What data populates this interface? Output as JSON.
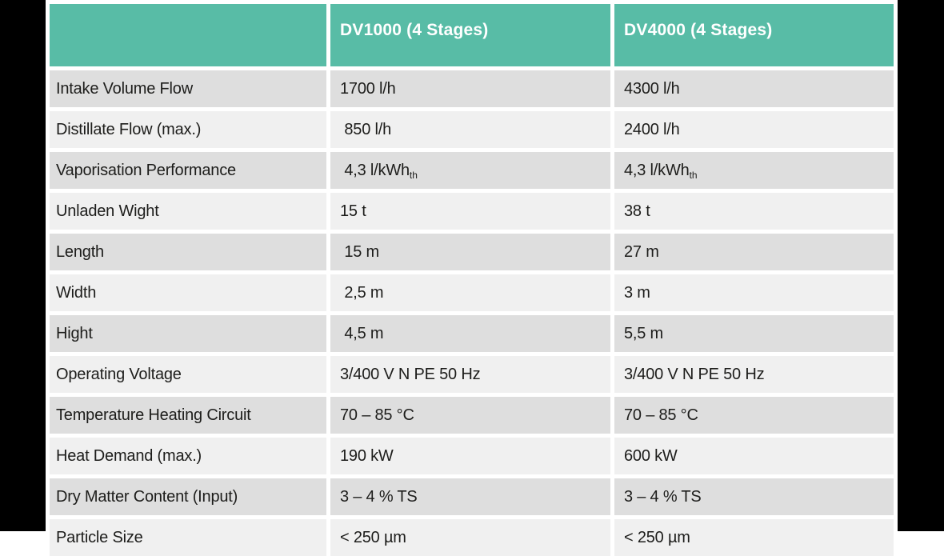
{
  "colors": {
    "header_bg": "#58bca6",
    "header_text": "#ffffff",
    "row_dark": "#dedede",
    "row_light": "#f0f0f0",
    "body_text": "#1d1d1b",
    "frame": "#000000"
  },
  "table": {
    "columns": [
      {
        "label": ""
      },
      {
        "label": "DV1000 (4 Stages)"
      },
      {
        "label": "DV4000 (4 Stages)"
      }
    ],
    "rows": [
      {
        "label": "Intake Volume Flow",
        "dv1000": {
          "text": "1700 l/h"
        },
        "dv4000": {
          "text": "4300 l/h"
        }
      },
      {
        "label": "Distillate Flow (max.)",
        "dv1000": {
          "text": " 850 l/h"
        },
        "dv4000": {
          "text": "2400 l/h"
        }
      },
      {
        "label": "Vaporisation Performance",
        "dv1000": {
          "text": " 4,3 l/kWh",
          "sub": "th"
        },
        "dv4000": {
          "text": "4,3 l/kWh",
          "sub": "th"
        }
      },
      {
        "label": "Unladen Wight",
        "dv1000": {
          "text": "15 t"
        },
        "dv4000": {
          "text": "38 t"
        }
      },
      {
        "label": "Length",
        "dv1000": {
          "text": " 15 m"
        },
        "dv4000": {
          "text": "27 m"
        }
      },
      {
        "label": "Width",
        "dv1000": {
          "text": " 2,5 m"
        },
        "dv4000": {
          "text": "3 m"
        }
      },
      {
        "label": "Hight",
        "dv1000": {
          "text": " 4,5 m"
        },
        "dv4000": {
          "text": "5,5 m"
        }
      },
      {
        "label": "Operating Voltage",
        "dv1000": {
          "text": "3/400 V N PE 50 Hz"
        },
        "dv4000": {
          "text": "3/400 V N PE 50 Hz"
        }
      },
      {
        "label": "Temperature Heating Circuit",
        "dv1000": {
          "text": "70 – 85 °C"
        },
        "dv4000": {
          "text": "70 – 85 °C"
        }
      },
      {
        "label": "Heat Demand (max.)",
        "dv1000": {
          "text": "190 kW"
        },
        "dv4000": {
          "text": "600 kW"
        }
      },
      {
        "label": "Dry Matter Content (Input)",
        "dv1000": {
          "text": "3 – 4 % TS"
        },
        "dv4000": {
          "text": "3 – 4 % TS"
        }
      },
      {
        "label": "Particle Size",
        "dv1000": {
          "text": "< 250 µm"
        },
        "dv4000": {
          "text": "< 250 µm"
        }
      }
    ]
  }
}
